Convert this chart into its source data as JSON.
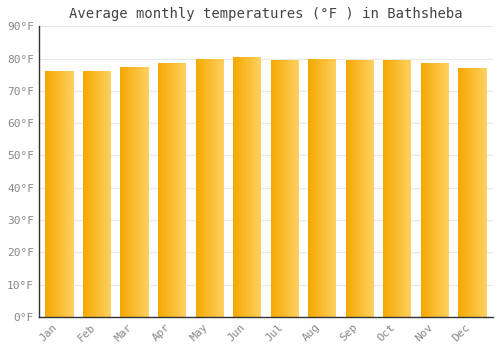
{
  "months": [
    "Jan",
    "Feb",
    "Mar",
    "Apr",
    "May",
    "Jun",
    "Jul",
    "Aug",
    "Sep",
    "Oct",
    "Nov",
    "Dec"
  ],
  "values": [
    76.1,
    76.1,
    77.5,
    78.5,
    80.0,
    80.5,
    79.5,
    80.0,
    79.5,
    79.5,
    78.5,
    77.0
  ],
  "bar_color_left": "#F5A800",
  "bar_color_right": "#FFD060",
  "title": "Average monthly temperatures (°F ) in Bathsheba",
  "ylim": [
    0,
    90
  ],
  "ytick_step": 10,
  "background_color": "#FFFFFF",
  "grid_color": "#E8E8E8",
  "title_fontsize": 10,
  "tick_fontsize": 8,
  "bar_edge_color": "#CCCCCC",
  "axis_color": "#333333"
}
